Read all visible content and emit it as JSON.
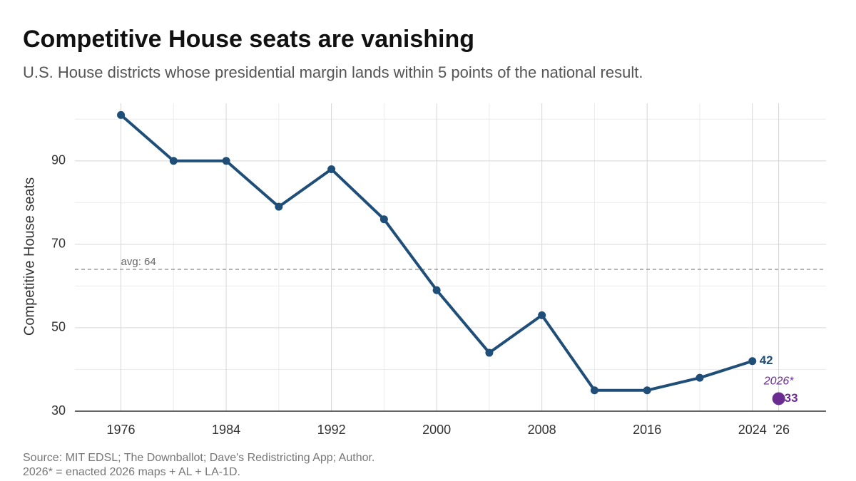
{
  "chart_data": {
    "type": "line",
    "title": "Competitive House seats are vanishing",
    "subtitle": "U.S. House districts whose presidential margin lands within 5 points of the national result.",
    "y_label": "Competitive House seats",
    "x": [
      1976,
      1980,
      1984,
      1988,
      1992,
      1996,
      2000,
      2004,
      2008,
      2012,
      2016,
      2020,
      2024
    ],
    "series": [
      {
        "color": "#1f4e79",
        "values": [
          101,
          90,
          90,
          79,
          88,
          76,
          59,
          44,
          53,
          35,
          35,
          38,
          42
        ]
      }
    ],
    "highlight": {
      "x": 2026,
      "value": 33,
      "label": "2026*",
      "color": "#6b2c91"
    },
    "average": {
      "value": 64,
      "label": "avg: 64"
    },
    "xlim": [
      1972.5,
      2029.6
    ],
    "ylim": [
      30,
      103.8
    ],
    "xticks": [
      1976,
      1984,
      1992,
      2000,
      2008,
      2016,
      2024,
      {
        "value": 2026,
        "label": "'26"
      }
    ],
    "yticks": [
      30,
      50,
      70,
      90
    ],
    "grid": true,
    "notes": [
      "Source: MIT EDSL; The Downballot; Dave's Redistricting App; Author.",
      "2026* = enacted 2026 maps + AL + LA-1D."
    ]
  }
}
